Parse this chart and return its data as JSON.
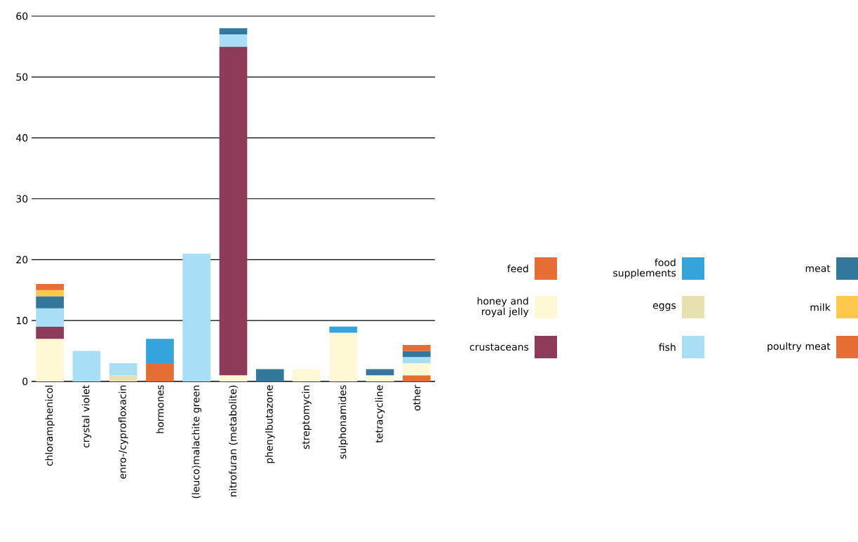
{
  "chart_data": {
    "type": "bar",
    "stacked": true,
    "categories": [
      "chloramphenicol",
      "crystal violet",
      "enro-/cyprofloxacin",
      "hormones",
      "(leuco)malachite green",
      "nitrofuran (metabolite)",
      "phenylbutazone",
      "streptomycin",
      "sulphonamides",
      "tetracycline",
      "other"
    ],
    "series": [
      {
        "name": "feed",
        "color": "#e66e35",
        "values": [
          null,
          null,
          null,
          3,
          null,
          null,
          null,
          null,
          null,
          null,
          1
        ]
      },
      {
        "name": "honey and royal jelly",
        "color": "#fff8d5",
        "values": [
          7,
          null,
          null,
          null,
          null,
          1,
          null,
          2,
          8,
          1,
          2
        ]
      },
      {
        "name": "crustaceans",
        "color": "#8e3b5b",
        "values": [
          2,
          null,
          null,
          null,
          null,
          54,
          null,
          null,
          null,
          null,
          null
        ]
      },
      {
        "name": "food supplements",
        "color": "#35a3dc",
        "values": [
          null,
          null,
          null,
          4,
          null,
          null,
          null,
          null,
          1,
          null,
          null
        ]
      },
      {
        "name": "eggs",
        "color": "#e8e0b0",
        "values": [
          null,
          null,
          1,
          null,
          null,
          null,
          null,
          null,
          null,
          null,
          null
        ]
      },
      {
        "name": "fish",
        "color": "#a8dff7",
        "values": [
          3,
          5,
          2,
          null,
          21,
          2,
          null,
          null,
          null,
          null,
          1
        ]
      },
      {
        "name": "meat",
        "color": "#33789a",
        "values": [
          2,
          null,
          null,
          null,
          null,
          1,
          2,
          null,
          null,
          1,
          1
        ]
      },
      {
        "name": "milk",
        "color": "#fec84a",
        "values": [
          1,
          null,
          null,
          null,
          null,
          null,
          null,
          null,
          null,
          null,
          null
        ]
      },
      {
        "name": "poultry meat",
        "color": "#e66e35",
        "values": [
          1,
          null,
          null,
          null,
          null,
          null,
          null,
          null,
          null,
          null,
          1
        ]
      }
    ],
    "ylim": [
      0,
      60
    ],
    "yticks": [
      0,
      10,
      20,
      30,
      40,
      50,
      60
    ],
    "grid": "y",
    "legend": "right"
  }
}
